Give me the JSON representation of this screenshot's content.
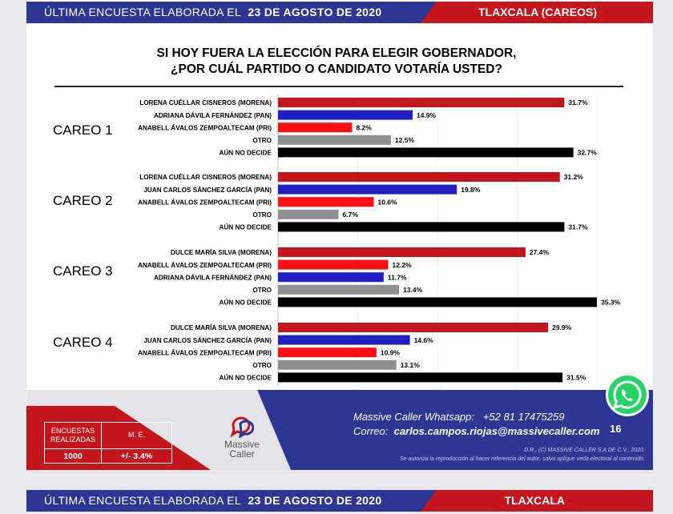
{
  "header": {
    "left_text": "ÚLTIMA ENCUESTA ELABORADA EL",
    "date": "23 DE AGOSTO DE 2020",
    "state": "TLAXCALA (CAREOS)"
  },
  "question": {
    "line1": "SI HOY FUERA LA ELECCIÓN PARA ELEGIR GOBERNADOR,",
    "line2": "¿POR CUÁL PARTIDO O CANDIDATO VOTARÍA USTED?"
  },
  "colors": {
    "morena": "#c4161c",
    "pan": "#1f1fc4",
    "pri": "#ff0f14",
    "otro": "#8f8f8f",
    "aun_no_decide": "#000000",
    "header_blue": "#2d3692",
    "header_red": "#c4161c"
  },
  "chart_data": {
    "type": "bar",
    "orientation": "horizontal",
    "xlim": [
      0,
      35.3
    ],
    "value_suffix": "%",
    "groups": [
      {
        "name": "CAREO 1",
        "categories": [
          "LORENA CUÉLLAR CISNEROS (MORENA)",
          "ADRIANA DÁVILA FERNÁNDEZ (PAN)",
          "ANABELL ÁVALOS ZEMPOALTECAM (PRI)",
          "OTRO",
          "AÚN NO DECIDE"
        ],
        "values": [
          31.7,
          14.9,
          8.2,
          12.5,
          32.7
        ],
        "labels": [
          "31.7%",
          "14.9%",
          "8.2%",
          "12.5%",
          "32.7%"
        ],
        "parties": [
          "morena",
          "pan",
          "pri",
          "otro",
          "aun_no_decide"
        ]
      },
      {
        "name": "CAREO 2",
        "categories": [
          "LORENA CUÉLLAR CISNEROS (MORENA)",
          "JUAN CARLOS SÁNCHEZ GARCÍA (PAN)",
          "ANABELL ÁVALOS ZEMPOALTECAM (PRI)",
          "OTRO",
          "AÚN NO DECIDE"
        ],
        "values": [
          31.2,
          19.8,
          10.6,
          6.7,
          31.7
        ],
        "labels": [
          "31.2%",
          "19.8%",
          "10.6%",
          "6.7%",
          "31.7%"
        ],
        "parties": [
          "morena",
          "pan",
          "pri",
          "otro",
          "aun_no_decide"
        ]
      },
      {
        "name": "CAREO 3",
        "categories": [
          "DULCE MARÍA SILVA (MORENA)",
          "ANABELL ÁVALOS ZEMPOALTECAM (PRI)",
          "ADRIANA DÁVILA FERNÁNDEZ (PAN)",
          "OTRO",
          "AÚN NO DECIDE"
        ],
        "values": [
          27.4,
          12.2,
          11.7,
          13.4,
          35.3
        ],
        "labels": [
          "27.4%",
          "12.2%",
          "11.7%",
          "13.4%",
          "35.3%"
        ],
        "parties": [
          "morena",
          "pri",
          "pan",
          "otro",
          "aun_no_decide"
        ]
      },
      {
        "name": "CAREO 4",
        "categories": [
          "DULCE MARÍA SILVA (MORENA)",
          "JUAN CARLOS SÁNCHEZ GARCÍA (PAN)",
          "ANABELL ÁVALOS ZEMPOALTECAM (PRI)",
          "OTRO",
          "AÚN NO DECIDE"
        ],
        "values": [
          29.9,
          14.6,
          10.9,
          13.1,
          31.5
        ],
        "labels": [
          "29.9%",
          "14.6%",
          "10.9%",
          "13.1%",
          "31.5%"
        ],
        "parties": [
          "morena",
          "pan",
          "pri",
          "otro",
          "aun_no_decide"
        ]
      }
    ]
  },
  "footer": {
    "stats": {
      "encuestas_label_1": "ENCUESTAS",
      "encuestas_label_2": "REALIZADAS",
      "me_label": "M. E.",
      "encuestas_value": "1000",
      "me_value": "+/- 3.4%"
    },
    "logo": {
      "line1": "Massive",
      "line2": "Caller"
    },
    "whatsapp_label": "Massive Caller Whatsapp:",
    "whatsapp_number": "+52 81 17475259",
    "email_label": "Correo:",
    "email": "carlos.campos.riojas@massivecaller.com",
    "page_number": "16",
    "copyright": "D.R., (C) MASSIVE CALLER S.A DE C.V., 2020.",
    "disclaimer": "Se autoriza la reproducción al hacer referencia del autor, salvo aplique veda electoral al contenido."
  },
  "next_header": {
    "left_text": "ÚLTIMA ENCUESTA ELABORADA EL",
    "date": "23 DE AGOSTO DE 2020",
    "state": "TLAXCALA"
  }
}
